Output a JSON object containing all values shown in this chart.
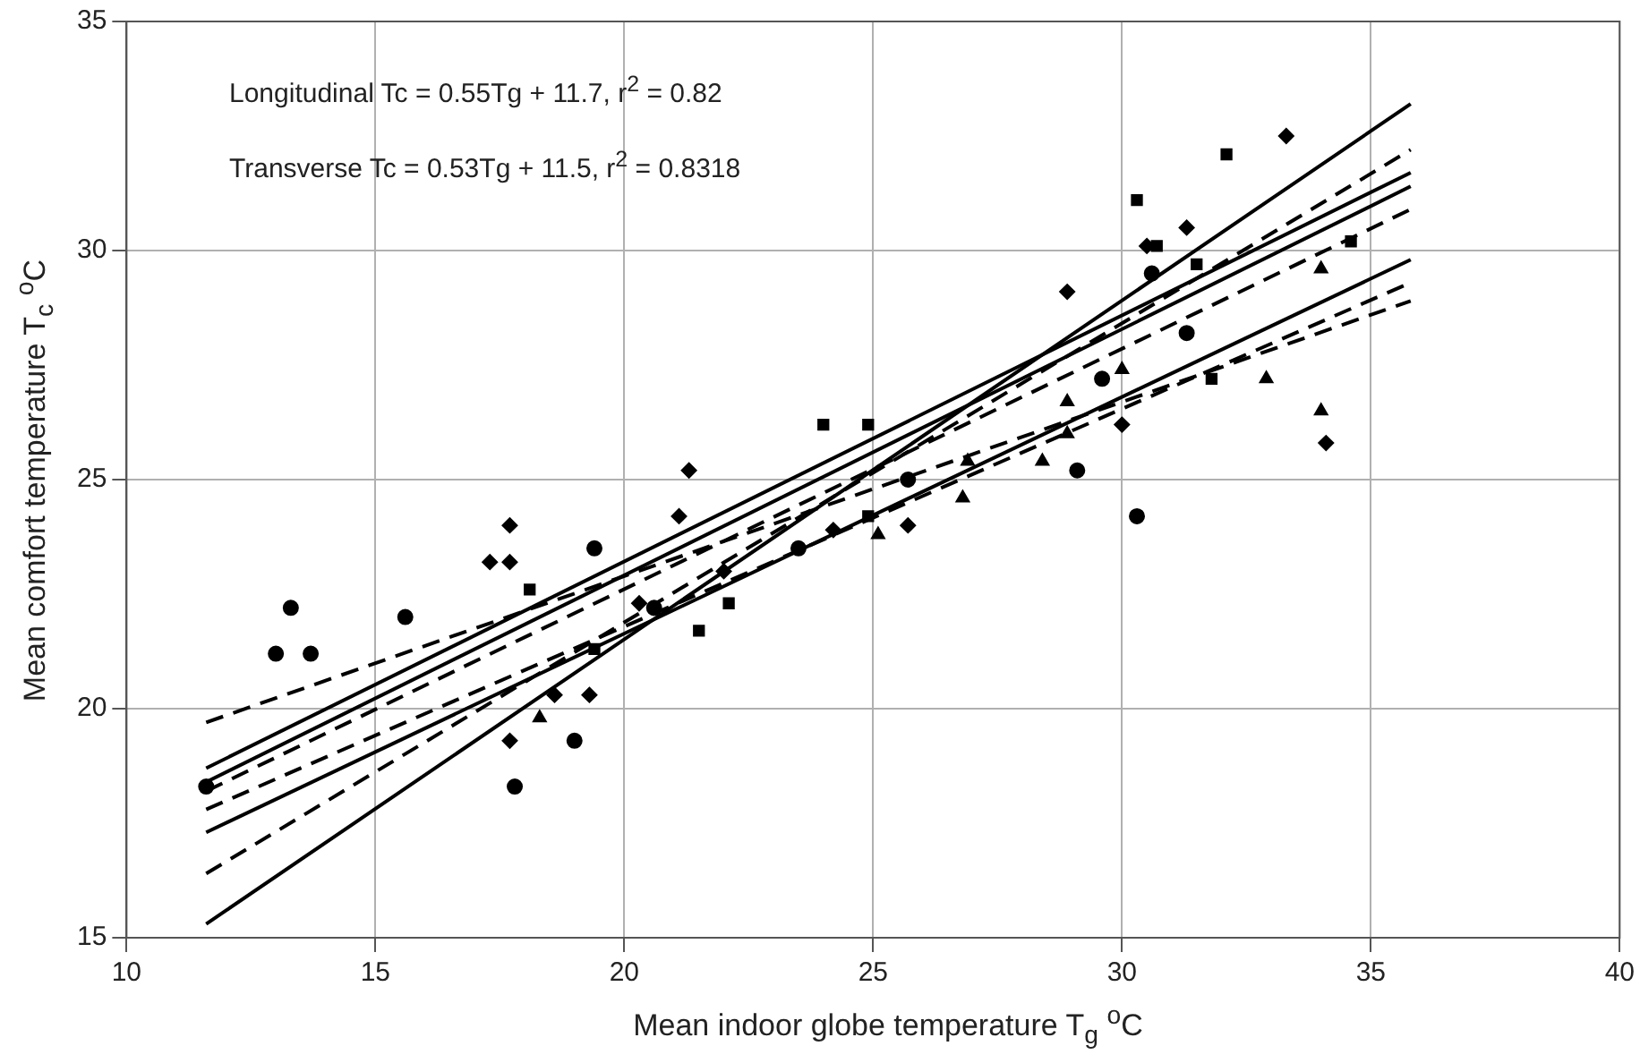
{
  "chart_data": {
    "type": "scatter",
    "xlabel": "Mean indoor globe temperature T$_{g}$ $^{o}$C",
    "ylabel": "Mean comfort temperature T$_{c}$ $^{o}$C",
    "xlim": [
      10,
      40
    ],
    "xticks": [
      10,
      15,
      20,
      25,
      30,
      35,
      40
    ],
    "ylim": [
      15,
      35
    ],
    "yticks": [
      15,
      20,
      25,
      30,
      35
    ],
    "grid": true,
    "legend": false,
    "annotations": [
      "Longitudinal Tc = 0.55Tg + 11.7, r$^{2}$ = 0.82",
      "Transverse Tc = 0.53Tg + 11.5, r$^{2}$ = 0.8318"
    ],
    "series": [
      {
        "type": "scatter",
        "marker": "diamond",
        "color": "#000000",
        "x": [
          17.7,
          17.3,
          17.7,
          21.3,
          21.1,
          17.7,
          18.6,
          19.3,
          20.3,
          22.0,
          25.7,
          24.2,
          33.3,
          31.3,
          30.5,
          28.9,
          34.1,
          30.0
        ],
        "values": [
          24.0,
          23.2,
          23.2,
          25.2,
          24.2,
          19.3,
          20.3,
          20.3,
          22.3,
          23.0,
          24.0,
          23.9,
          32.5,
          30.5,
          30.1,
          29.1,
          25.8,
          26.2
        ]
      },
      {
        "type": "scatter",
        "marker": "square",
        "color": "#000000",
        "x": [
          18.1,
          19.4,
          21.5,
          22.1,
          24.0,
          24.9,
          24.9,
          30.3,
          32.1,
          30.7,
          31.5,
          34.6,
          31.8
        ],
        "values": [
          22.6,
          21.3,
          21.7,
          22.3,
          26.2,
          26.2,
          24.2,
          31.1,
          32.1,
          30.1,
          29.7,
          30.2,
          27.2
        ]
      },
      {
        "type": "scatter",
        "marker": "circle",
        "color": "#000000",
        "x": [
          11.6,
          13.0,
          13.7,
          13.3,
          15.6,
          17.8,
          19.0,
          19.4,
          20.6,
          23.5,
          25.7,
          29.1,
          29.6,
          30.3,
          31.3,
          30.6
        ],
        "values": [
          18.3,
          21.2,
          21.2,
          22.2,
          22.0,
          18.3,
          19.3,
          23.5,
          22.2,
          23.5,
          25.0,
          25.2,
          27.2,
          24.2,
          28.2,
          29.5
        ]
      },
      {
        "type": "scatter",
        "marker": "triangle",
        "color": "#000000",
        "x": [
          18.3,
          25.1,
          26.8,
          26.9,
          28.4,
          28.9,
          28.9,
          30.0,
          32.9,
          34.0,
          34.0
        ],
        "values": [
          19.8,
          23.8,
          24.6,
          25.4,
          25.4,
          26.0,
          26.7,
          27.4,
          27.2,
          26.5,
          29.6
        ]
      },
      {
        "type": "line",
        "marker": "none",
        "line_style": "solid",
        "color": "#000000",
        "x": [
          11.6,
          35.8
        ],
        "values": [
          15.3,
          33.2
        ]
      },
      {
        "type": "line",
        "marker": "none",
        "line_style": "dashed",
        "color": "#000000",
        "x": [
          11.6,
          35.8
        ],
        "values": [
          16.4,
          32.2
        ]
      },
      {
        "type": "line",
        "marker": "none",
        "line_style": "solid",
        "color": "#000000",
        "x": [
          11.6,
          35.8
        ],
        "values": [
          18.7,
          31.7
        ]
      },
      {
        "type": "line",
        "marker": "none",
        "line_style": "solid",
        "color": "#000000",
        "x": [
          11.6,
          35.8
        ],
        "values": [
          18.4,
          31.4
        ]
      },
      {
        "type": "line",
        "marker": "none",
        "line_style": "dashed",
        "color": "#000000",
        "x": [
          11.6,
          35.8
        ],
        "values": [
          18.2,
          30.9
        ]
      },
      {
        "type": "line",
        "marker": "none",
        "line_style": "solid",
        "color": "#000000",
        "x": [
          11.6,
          35.8
        ],
        "values": [
          17.3,
          29.8
        ]
      },
      {
        "type": "line",
        "marker": "none",
        "line_style": "dashed",
        "color": "#000000",
        "x": [
          11.6,
          35.8
        ],
        "values": [
          17.8,
          29.3
        ]
      },
      {
        "type": "line",
        "marker": "none",
        "line_style": "dashed",
        "color": "#000000",
        "x": [
          11.6,
          35.8
        ],
        "values": [
          19.7,
          28.9
        ]
      }
    ]
  }
}
